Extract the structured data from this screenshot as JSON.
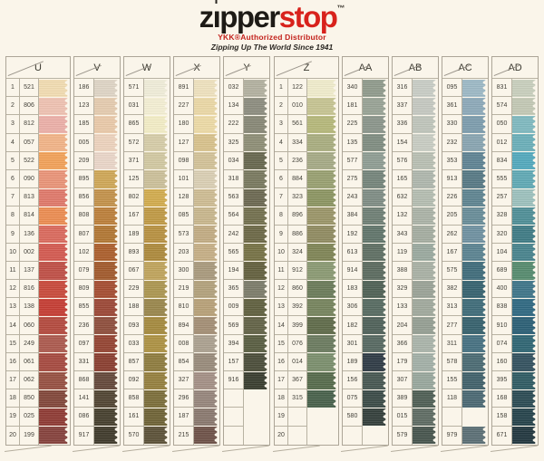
{
  "header": {
    "brand_z": "z",
    "brand_i": "ı",
    "brand_pper": "pper",
    "brand_stop": "stop",
    "trademark": "™",
    "subtitle": "YKK®Authorized Distributor",
    "tagline": "Zipping Up The World Since 1941"
  },
  "palette": {
    "paper": "#FAF5EA",
    "brand_black": "#1E1B16",
    "brand_red": "#D8221C",
    "subtitle_red": "#C3221C",
    "grid_line": "#B8B2A2"
  },
  "card": {
    "row_numbers": [
      "1",
      "2",
      "3",
      "4",
      "5",
      "6",
      "7",
      "8",
      "9",
      "10",
      "11",
      "12",
      "13",
      "14",
      "15",
      "16",
      "17",
      "18",
      "19",
      "20"
    ],
    "groups": [
      {
        "name": "left",
        "columns": [
          {
            "label": "U",
            "show_row_numbers": true,
            "codes": [
              "521",
              "806",
              "812",
              "057",
              "522",
              "090",
              "813",
              "814",
              "136",
              "002",
              "137",
              "816",
              "138",
              "060",
              "249",
              "061",
              "062",
              "850",
              "025",
              "199"
            ],
            "colors": [
              "#F2DCB2",
              "#EFC2B2",
              "#ECB0A8",
              "#F2B488",
              "#F2A259",
              "#EA9478",
              "#E0796B",
              "#EC8D52",
              "#DA6A5D",
              "#D45A50",
              "#BF4F46",
              "#C94A3B",
              "#C53D33",
              "#B44A3E",
              "#AC5A4E",
              "#A64A40",
              "#975042",
              "#82473A",
              "#8F3B34",
              "#86423C"
            ]
          },
          {
            "label": "V",
            "show_row_numbers": false,
            "codes": [
              "186",
              "123",
              "185",
              "005",
              "209",
              "895",
              "856",
              "808",
              "807",
              "102",
              "079",
              "809",
              "855",
              "236",
              "097",
              "331",
              "868",
              "141",
              "086",
              "917"
            ],
            "colors": [
              "#DFD5C5",
              "#E5CCAF",
              "#EACAA9",
              "#EDD3BD",
              "#EAD6C9",
              "#CFA757",
              "#C3924B",
              "#BC7F3A",
              "#B27733",
              "#AC5F2C",
              "#A25A2C",
              "#A54D31",
              "#9C4836",
              "#8E4E3C",
              "#944432",
              "#8A3E30",
              "#64483A",
              "#514533",
              "#46402E",
              "#403A2B"
            ]
          },
          {
            "label": "W",
            "show_row_numbers": false,
            "codes": [
              "571",
              "031",
              "865",
              "572",
              "371",
              "125",
              "802",
              "167",
              "189",
              "893",
              "067",
              "229",
              "188",
              "093",
              "033",
              "857",
              "092",
              "858",
              "161",
              "570"
            ],
            "colors": [
              "#F0EDD9",
              "#F4EFD4",
              "#F3EDC6",
              "#D6CDA8",
              "#D2C9A2",
              "#CCC09A",
              "#D2AC4E",
              "#C09A45",
              "#B89141",
              "#AE8A3C",
              "#C0A45C",
              "#AC9650",
              "#9A874C",
              "#A58A3E",
              "#AD9243",
              "#8E7C3E",
              "#95803E",
              "#7C6E3A",
              "#6F6336",
              "#5C5138"
            ]
          },
          {
            "label": "X",
            "show_row_numbers": false,
            "codes": [
              "891",
              "227",
              "180",
              "127",
              "098",
              "101",
              "128",
              "085",
              "573",
              "203",
              "300",
              "219",
              "810",
              "894",
              "008",
              "854",
              "327",
              "296",
              "187",
              "215"
            ],
            "colors": [
              "#EFE2BE",
              "#EBD8A6",
              "#EDDAA6",
              "#D8C28C",
              "#D3C298",
              "#DACFB4",
              "#CEBC93",
              "#C9B78D",
              "#C2AC83",
              "#C6AF86",
              "#A99A7D",
              "#B3A27C",
              "#B8A178",
              "#A48F75",
              "#ABA190",
              "#998B7B",
              "#A49086",
              "#96867C",
              "#8A796F",
              "#6E5248"
            ]
          },
          {
            "label": "Y",
            "show_row_numbers": false,
            "codes": [
              "032",
              "134",
              "222",
              "325",
              "034",
              "318",
              "563",
              "564",
              "242",
              "565",
              "194",
              "365",
              "009",
              "569",
              "394",
              "157",
              "916",
              null,
              null,
              null
            ],
            "colors": [
              "#B3B1A0",
              "#8D8D7F",
              "#888876",
              "#8E8E76",
              "#67674E",
              "#79795F",
              "#6C6951",
              "#73704E",
              "#6C6846",
              "#767245",
              "#63603E",
              "#7C7C6A",
              "#60603F",
              "#626246",
              "#595D41",
              "#4B4D39",
              "#393D2F",
              null,
              null,
              null
            ]
          }
        ]
      },
      {
        "name": "right",
        "columns": [
          {
            "label": "Z",
            "show_row_numbers": true,
            "codes": [
              "122",
              "010",
              "561",
              "334",
              "236",
              "884",
              "323",
              "896",
              "886",
              "324",
              "912",
              "860",
              "392",
              "399",
              "076",
              "014",
              "367",
              "315",
              null,
              null
            ],
            "colors": [
              "#F0ECCC",
              "#C6C492",
              "#B6B87A",
              "#A9AE80",
              "#A6AA86",
              "#99A071",
              "#8C9562",
              "#9B9569",
              "#908B61",
              "#7F8556",
              "#8B9A73",
              "#6B7B59",
              "#76845D",
              "#5F6B49",
              "#6B7B5F",
              "#7B8F6D",
              "#566B4B",
              "#48614B",
              null,
              null
            ]
          },
          {
            "label": "AA",
            "show_row_numbers": false,
            "codes": [
              "340",
              "181",
              "225",
              "135",
              "577",
              "275",
              "243",
              "384",
              "192",
              "613",
              "914",
              "183",
              "306",
              "182",
              "301",
              "189",
              "156",
              "075",
              "580",
              null
            ],
            "colors": [
              "#909B8C",
              "#99A395",
              "#8B958B",
              "#808D81",
              "#8F9D93",
              "#75857B",
              "#7F8D85",
              "#6F7F75",
              "#61756B",
              "#5F6F63",
              "#5B6B5F",
              "#4F6155",
              "#576B61",
              "#4F6159",
              "#576961",
              "#2F3B45",
              "#475751",
              "#3B4B47",
              "#333F3B",
              null
            ]
          },
          {
            "label": "AB",
            "show_row_numbers": false,
            "codes": [
              "316",
              "337",
              "336",
              "154",
              "576",
              "165",
              "632",
              "132",
              "343",
              "119",
              "388",
              "329",
              "133",
              "204",
              "366",
              "179",
              "307",
              "389",
              "015",
              "579"
            ],
            "colors": [
              "#C9CDC5",
              "#C5C9C1",
              "#BFC5BB",
              "#C9CDC3",
              "#B9BFB3",
              "#AFB7AD",
              "#B5BDB1",
              "#ABB3A7",
              "#A5ADA1",
              "#9BA99F",
              "#A9B1A5",
              "#9BA397",
              "#A1A99D",
              "#959F93",
              "#AAB4AA",
              "#A3B0A7",
              "#99A79D",
              "#4F5F55",
              "#5F6C63",
              "#47554D"
            ]
          },
          {
            "label": "AC",
            "show_row_numbers": false,
            "codes": [
              "095",
              "361",
              "330",
              "232",
              "353",
              "913",
              "226",
              "205",
              "262",
              "167",
              "575",
              "382",
              "313",
              "277",
              "311",
              "578",
              "155",
              "118",
              null,
              "979"
            ],
            "colors": [
              "#9DB9C5",
              "#8DA9B9",
              "#7D9DAD",
              "#89A5B1",
              "#5F8393",
              "#577985",
              "#5F8591",
              "#698D99",
              "#6F91A1",
              "#5B8391",
              "#406C7B",
              "#36626F",
              "#3F6C79",
              "#36616D",
              "#467181",
              "#4B6B73",
              "#41616B",
              "#4B6973",
              null,
              "#5B6F75"
            ]
          },
          {
            "label": "AD",
            "show_row_numbers": false,
            "codes": [
              "831",
              "574",
              "050",
              "012",
              "834",
              "555",
              "257",
              "328",
              "320",
              "104",
              "689",
              "400",
              "838",
              "910",
              "074",
              "160",
              "395",
              "168",
              "158",
              "671"
            ],
            "colors": [
              "#C9CFBD",
              "#C3C9B5",
              "#7FB9BF",
              "#6BAFB9",
              "#53A9BD",
              "#60A9B5",
              "#9DC1BD",
              "#4F8F97",
              "#3F7B85",
              "#48838D",
              "#568B6E",
              "#3F7589",
              "#2F6981",
              "#2B5F75",
              "#2F6573",
              "#33515F",
              "#2F5B63",
              "#2B4B53",
              "#25434B",
              "#21373F"
            ]
          }
        ]
      }
    ]
  }
}
